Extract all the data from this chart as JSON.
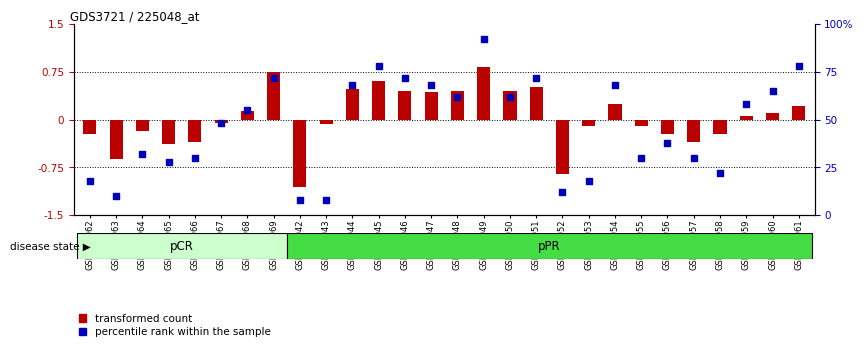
{
  "title": "GDS3721 / 225048_at",
  "categories": [
    "GSM559062",
    "GSM559063",
    "GSM559064",
    "GSM559065",
    "GSM559066",
    "GSM559067",
    "GSM559068",
    "GSM559069",
    "GSM559042",
    "GSM559043",
    "GSM559044",
    "GSM559045",
    "GSM559046",
    "GSM559047",
    "GSM559048",
    "GSM559049",
    "GSM559050",
    "GSM559051",
    "GSM559052",
    "GSM559053",
    "GSM559054",
    "GSM559055",
    "GSM559056",
    "GSM559057",
    "GSM559058",
    "GSM559059",
    "GSM559060",
    "GSM559061"
  ],
  "red_bars": [
    -0.22,
    -0.62,
    -0.18,
    -0.38,
    -0.35,
    -0.05,
    0.13,
    0.75,
    -1.05,
    -0.07,
    0.48,
    0.6,
    0.45,
    0.43,
    0.45,
    0.82,
    0.45,
    0.52,
    -0.85,
    -0.1,
    0.25,
    -0.1,
    -0.22,
    -0.35,
    -0.22,
    0.05,
    0.1,
    0.22
  ],
  "blue_dots": [
    18,
    10,
    32,
    28,
    30,
    48,
    55,
    72,
    8,
    8,
    68,
    78,
    72,
    68,
    62,
    92,
    62,
    72,
    12,
    18,
    68,
    30,
    38,
    30,
    22,
    58,
    65,
    78
  ],
  "pCR_count": 8,
  "pPR_count": 20,
  "ylim_left": [
    -1.5,
    1.5
  ],
  "ylim_right": [
    0,
    100
  ],
  "yticks_left": [
    -1.5,
    -0.75,
    0,
    0.75,
    1.5
  ],
  "yticks_right": [
    0,
    25,
    50,
    75,
    100
  ],
  "bar_color": "#bb0000",
  "dot_color": "#0000bb",
  "pCR_color": "#ccffcc",
  "pPR_color": "#44dd44",
  "bg_color": "#ffffff",
  "legend_red": "transformed count",
  "legend_blue": "percentile rank within the sample",
  "disease_state_label": "disease state",
  "pCR_label": "pCR",
  "pPR_label": "pPR",
  "hline_color": "#555555",
  "tick_label_color_gray": "#aaaaaa"
}
